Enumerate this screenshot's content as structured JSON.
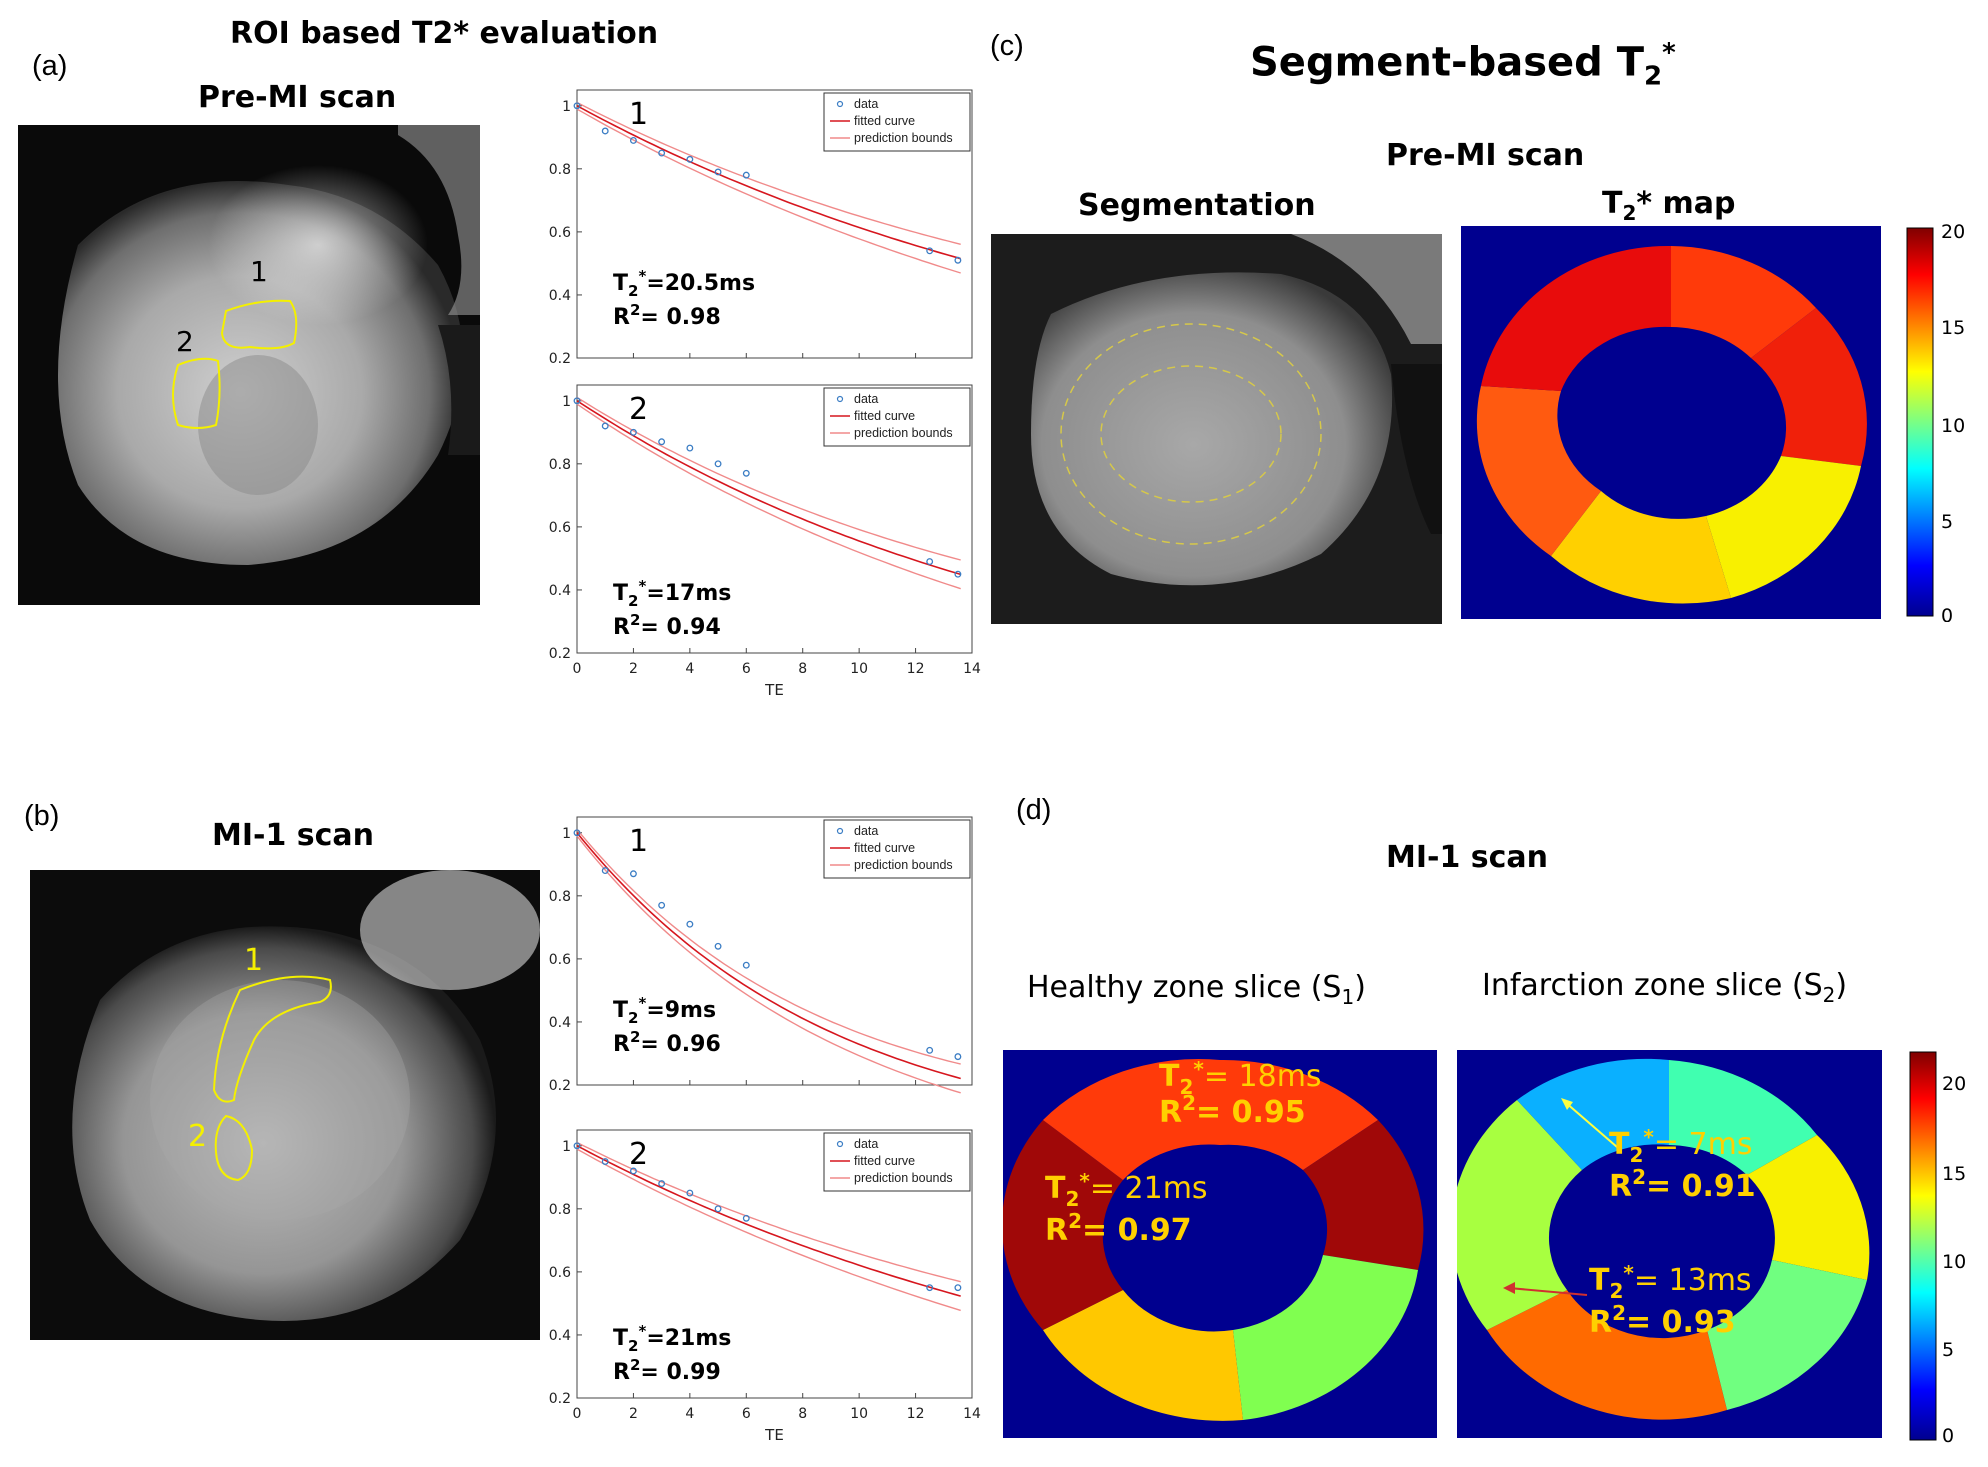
{
  "panel_a": {
    "label": "(a)",
    "title": "ROI based T2* evaluation",
    "subtitle": "Pre-MI scan",
    "roi_labels": [
      "1",
      "2"
    ]
  },
  "panel_b": {
    "label": "(b)",
    "subtitle": "MI-1 scan",
    "roi_labels": [
      "1",
      "2"
    ]
  },
  "panel_c": {
    "label": "(c)",
    "title_main": "Segment-based T",
    "title_sub": "2",
    "title_sup": "*",
    "scan": "Pre-MI scan",
    "seg_title": "Segmentation",
    "map_title_main": "T",
    "map_title_sub": "2",
    "map_title_rest": "* map",
    "colorbar_ticks": [
      "20",
      "15",
      "10",
      "5",
      "0"
    ]
  },
  "panel_d": {
    "label": "(d)",
    "scan": "MI-1 scan",
    "healthy_label": "Healthy  zone slice (S",
    "healthy_sub": "1",
    "infarct_label": "Infarction zone slice (S",
    "infarct_sub": "2",
    "close_paren": ")",
    "colorbar_ticks": [
      "20",
      "15",
      "10",
      "5",
      "0"
    ],
    "annotations": {
      "h1_t2": "= 18ms",
      "h1_r2": "= 0.95",
      "h2_t2": "= 21ms",
      "h2_r2": "= 0.97",
      "i1_t2": "= 7ms",
      "i1_r2": "= 0.91",
      "i2_t2": "= 13ms",
      "i2_r2": "= 0.93"
    }
  },
  "legend": [
    "data",
    "fitted curve",
    "prediction bounds"
  ],
  "xlabel": "TE",
  "colors": {
    "data_marker": "#3b7dc4",
    "fit_line": "#d6161e",
    "bounds_line": "#f08a8a",
    "roi_outline": "#f4f000",
    "annotation_text": "#ffd000",
    "map_bg": "#00008f"
  },
  "chart_data": [
    {
      "type": "scatter",
      "id": "a1",
      "roi": "1",
      "x": [
        0,
        1,
        2,
        3,
        4,
        5,
        6,
        12.5,
        13.5
      ],
      "y": [
        1.0,
        0.92,
        0.89,
        0.85,
        0.83,
        0.79,
        0.78,
        0.54,
        0.51
      ],
      "fit_T2": 20.5,
      "xlim": [
        0,
        14
      ],
      "ylim": [
        0.2,
        1.05
      ],
      "yticks": [
        "1",
        "0.8",
        "0.6",
        "0.4",
        "0.2"
      ],
      "show_xticks": false,
      "t2_text": "=20.5ms",
      "r2_text": "= 0.98"
    },
    {
      "type": "scatter",
      "id": "a2",
      "roi": "2",
      "x": [
        0,
        1,
        2,
        3,
        4,
        5,
        6,
        12.5,
        13.5
      ],
      "y": [
        1.0,
        0.92,
        0.9,
        0.87,
        0.85,
        0.8,
        0.77,
        0.49,
        0.45
      ],
      "fit_T2": 17,
      "xlim": [
        0,
        14
      ],
      "ylim": [
        0.2,
        1.05
      ],
      "yticks": [
        "1",
        "0.8",
        "0.6",
        "0.4",
        "0.2"
      ],
      "show_xticks": true,
      "xticks": [
        "0",
        "2",
        "4",
        "6",
        "8",
        "10",
        "12",
        "14"
      ],
      "t2_text": "=17ms",
      "r2_text": "= 0.94"
    },
    {
      "type": "scatter",
      "id": "b1",
      "roi": "1",
      "x": [
        0,
        1,
        2,
        3,
        4,
        5,
        6,
        12.5,
        13.5
      ],
      "y": [
        1.0,
        0.88,
        0.87,
        0.77,
        0.71,
        0.64,
        0.58,
        0.31,
        0.29
      ],
      "fit_T2": 9,
      "xlim": [
        0,
        14
      ],
      "ylim": [
        0.2,
        1.05
      ],
      "yticks": [
        "1",
        "0.8",
        "0.6",
        "0.4",
        "0.2"
      ],
      "show_xticks": false,
      "t2_text": "=9ms",
      "r2_text": "= 0.96"
    },
    {
      "type": "scatter",
      "id": "b2",
      "roi": "2",
      "x": [
        0,
        1,
        2,
        3,
        4,
        5,
        6,
        12.5,
        13.5
      ],
      "y": [
        1.0,
        0.95,
        0.92,
        0.88,
        0.85,
        0.8,
        0.77,
        0.55,
        0.55
      ],
      "fit_T2": 21,
      "xlim": [
        0,
        14
      ],
      "ylim": [
        0.2,
        1.05
      ],
      "yticks": [
        "1",
        "0.8",
        "0.6",
        "0.4",
        "0.2"
      ],
      "show_xticks": true,
      "xticks": [
        "0",
        "2",
        "4",
        "6",
        "8",
        "10",
        "12",
        "14"
      ],
      "t2_text": "=21ms",
      "r2_text": "= 0.99"
    }
  ]
}
